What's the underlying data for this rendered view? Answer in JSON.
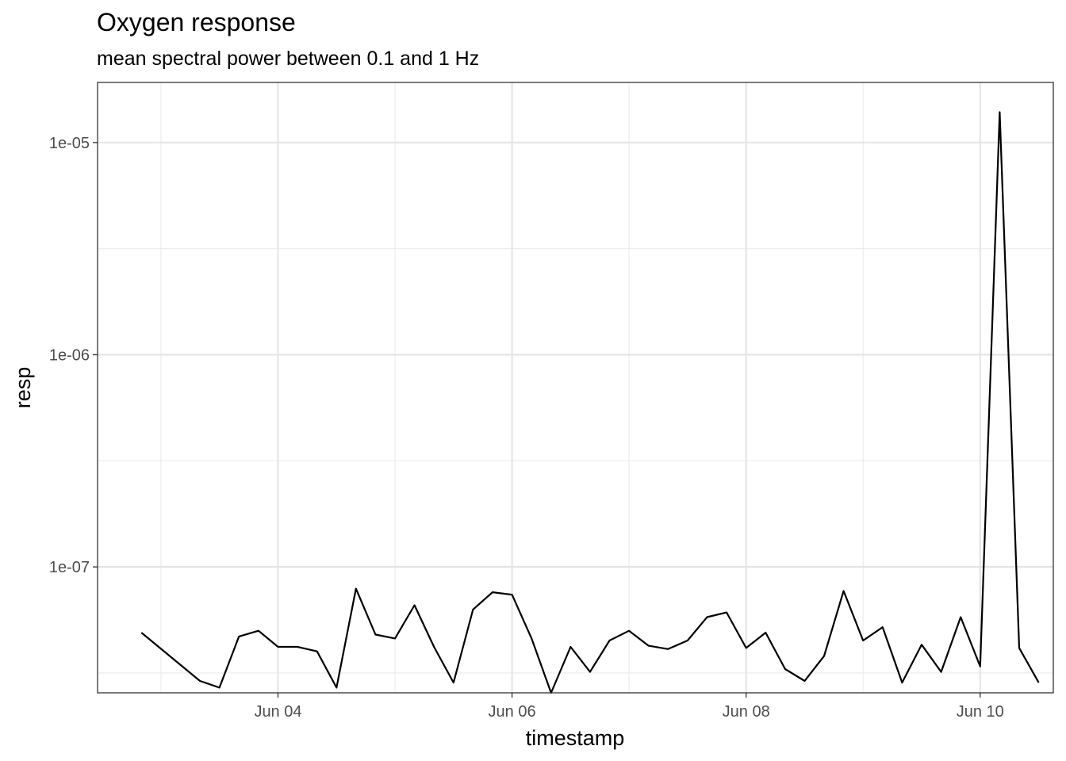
{
  "chart_data": {
    "type": "line",
    "title": "Oxygen response",
    "subtitle": "mean spectral power between 0.1 and 1 Hz",
    "xlabel": "timestamp",
    "ylabel": "resp",
    "y_scale": "log10",
    "ylim": [
      2.55e-08,
      1.92e-05
    ],
    "xlim": [
      "2023-06-02 11:00",
      "2023-06-10 15:00"
    ],
    "x_ticks": [
      {
        "value": "2023-06-04 00:00",
        "label": "Jun 04"
      },
      {
        "value": "2023-06-06 00:00",
        "label": "Jun 06"
      },
      {
        "value": "2023-06-08 00:00",
        "label": "Jun 08"
      },
      {
        "value": "2023-06-10 00:00",
        "label": "Jun 10"
      }
    ],
    "y_ticks": [
      {
        "value": 1e-05,
        "label": "1e-05"
      },
      {
        "value": 1e-06,
        "label": "1e-06"
      },
      {
        "value": 1e-07,
        "label": "1e-07"
      }
    ],
    "grid": true,
    "legend": "none",
    "line_color": "#000000",
    "series": [
      {
        "x": [
          "2023-06-02 20:00",
          "2023-06-03 08:00",
          "2023-06-03 12:00",
          "2023-06-03 16:00",
          "2023-06-03 20:00",
          "2023-06-04 00:00",
          "2023-06-04 04:00",
          "2023-06-04 08:00",
          "2023-06-04 12:00",
          "2023-06-04 16:00",
          "2023-06-04 20:00",
          "2023-06-05 00:00",
          "2023-06-05 04:00",
          "2023-06-05 08:00",
          "2023-06-05 12:00",
          "2023-06-05 16:00",
          "2023-06-05 20:00",
          "2023-06-06 00:00",
          "2023-06-06 04:00",
          "2023-06-06 08:00",
          "2023-06-06 12:00",
          "2023-06-06 16:00",
          "2023-06-06 20:00",
          "2023-06-07 00:00",
          "2023-06-07 04:00",
          "2023-06-07 08:00",
          "2023-06-07 12:00",
          "2023-06-07 16:00",
          "2023-06-07 20:00",
          "2023-06-08 00:00",
          "2023-06-08 04:00",
          "2023-06-08 08:00",
          "2023-06-08 12:00",
          "2023-06-08 16:00",
          "2023-06-08 20:00",
          "2023-06-09 00:00",
          "2023-06-09 04:00",
          "2023-06-09 08:00",
          "2023-06-09 12:00",
          "2023-06-09 16:00",
          "2023-06-09 20:00",
          "2023-06-10 00:00",
          "2023-06-10 04:00",
          "2023-06-10 08:00",
          "2023-06-10 12:00"
        ],
        "y": [
          4.9e-08,
          2.9e-08,
          2.7e-08,
          4.7e-08,
          5e-08,
          4.2e-08,
          4.2e-08,
          4e-08,
          2.7e-08,
          7.9e-08,
          4.8e-08,
          4.6e-08,
          6.6e-08,
          4.2e-08,
          2.85e-08,
          6.3e-08,
          7.6e-08,
          7.4e-08,
          4.6e-08,
          2.55e-08,
          4.2e-08,
          3.2e-08,
          4.5e-08,
          5e-08,
          4.25e-08,
          4.1e-08,
          4.5e-08,
          5.8e-08,
          6.1e-08,
          4.15e-08,
          4.9e-08,
          3.3e-08,
          2.9e-08,
          3.8e-08,
          7.7e-08,
          4.5e-08,
          5.2e-08,
          2.85e-08,
          4.3e-08,
          3.2e-08,
          5.8e-08,
          3.4e-08,
          1.39e-05,
          4.15e-08,
          2.85e-08
        ]
      }
    ]
  }
}
